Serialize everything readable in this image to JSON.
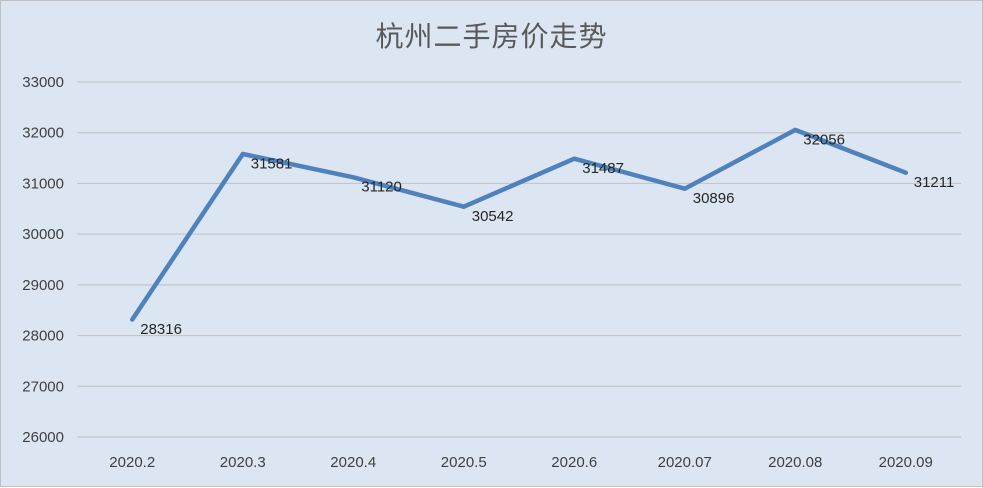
{
  "chart_data": {
    "type": "line",
    "title": "杭州二手房价走势",
    "xlabel": "",
    "ylabel": "",
    "categories": [
      "2020.2",
      "2020.3",
      "2020.4",
      "2020.5",
      "2020.6",
      "2020.07",
      "2020.08",
      "2020.09"
    ],
    "series": [
      {
        "values": [
          28316,
          31581,
          31120,
          30542,
          31487,
          30896,
          32056,
          31211
        ]
      }
    ],
    "ylim": [
      26000,
      33000
    ],
    "yticks": [
      "26000",
      "27000",
      "28000",
      "29000",
      "30000",
      "31000",
      "32000",
      "33000"
    ],
    "grid": true,
    "legend": "none",
    "data_labels": true,
    "line_color": "#4f81bd",
    "background_color": "#dce6f2"
  }
}
